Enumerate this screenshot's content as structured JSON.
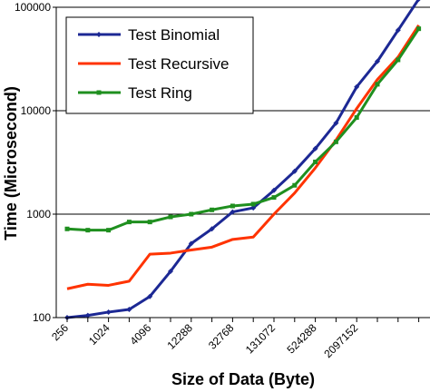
{
  "chart_data": {
    "type": "line",
    "title": "",
    "xlabel": "Size of Data (Byte)",
    "ylabel": "Time (Microsecond)",
    "y_scale": "log",
    "ylim": [
      100,
      100000
    ],
    "y_ticks": [
      "100",
      "1000",
      "10000",
      "100000"
    ],
    "x_tick_labels": [
      "256",
      "1024",
      "4096",
      "12288",
      "32768",
      "131072",
      "524288",
      "2097152"
    ],
    "grid": "horizontal major gridlines",
    "legend_position": "top-left",
    "x": [
      256,
      512,
      1024,
      2048,
      4096,
      8192,
      12288,
      16384,
      24576,
      32768,
      65536,
      131072,
      262144,
      524288,
      1048576,
      2097152,
      4194304,
      8388608
    ],
    "series": [
      {
        "name": "Test Binomial",
        "color": "#1c2894",
        "marker": "diamond",
        "values": [
          100,
          105,
          113,
          120,
          160,
          280,
          520,
          720,
          1050,
          1150,
          1700,
          2600,
          4300,
          7600,
          17000,
          30000,
          60000,
          120000
        ]
      },
      {
        "name": "Test Recursive",
        "color": "#ff3300",
        "marker": "none",
        "values": [
          190,
          210,
          205,
          225,
          410,
          420,
          450,
          480,
          570,
          600,
          1000,
          1600,
          2800,
          5200,
          10500,
          20000,
          33000,
          67000
        ]
      },
      {
        "name": "Test Ring",
        "color": "#1f8f1f",
        "marker": "square",
        "values": [
          720,
          700,
          700,
          840,
          840,
          940,
          1000,
          1100,
          1200,
          1250,
          1450,
          1900,
          3200,
          5000,
          8600,
          18000,
          31000,
          62000
        ]
      }
    ]
  }
}
